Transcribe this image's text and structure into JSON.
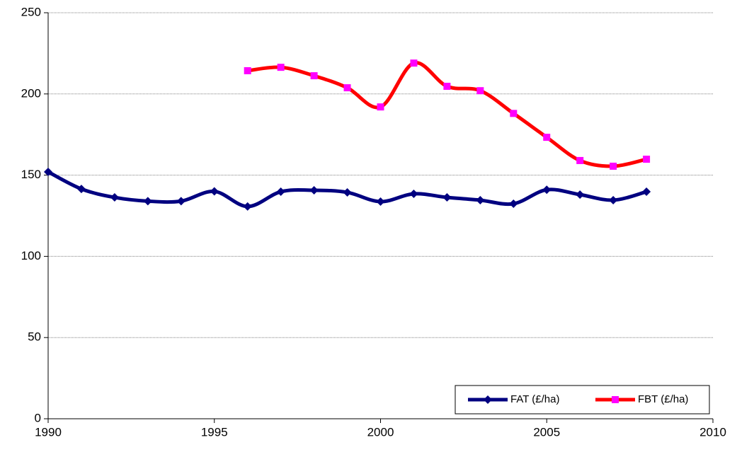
{
  "chart_data": {
    "type": "line",
    "x": [
      1990,
      1991,
      1992,
      1993,
      1994,
      1995,
      1996,
      1997,
      1998,
      1999,
      2000,
      2001,
      2002,
      2003,
      2004,
      2005,
      2006,
      2007,
      2008
    ],
    "series": [
      {
        "name": "FAT (£/ha)",
        "color": "#000080",
        "marker": "diamond",
        "marker_color": "#000080",
        "values": [
          152,
          141.5,
          136.3,
          134,
          134,
          140,
          130.7,
          139.8,
          140.7,
          139.4,
          133.7,
          138.5,
          136.3,
          134.6,
          132.4,
          141,
          138,
          134.6,
          139.8
        ]
      },
      {
        "name": "FBT (£/ha)",
        "color": "#ff0000",
        "marker": "square",
        "marker_color": "#ff00ff",
        "values": [
          null,
          null,
          null,
          null,
          null,
          null,
          214.3,
          216.4,
          211.2,
          203.8,
          192,
          219,
          204.7,
          202,
          188,
          173.3,
          159,
          155.5,
          159.8
        ]
      }
    ],
    "xlim": [
      1990,
      2010
    ],
    "xticks": [
      1990,
      1995,
      2000,
      2005,
      2010
    ],
    "ylim": [
      0,
      250
    ],
    "yticks": [
      0,
      50,
      100,
      150,
      200,
      250
    ],
    "grid": true,
    "legend": "lower right"
  }
}
